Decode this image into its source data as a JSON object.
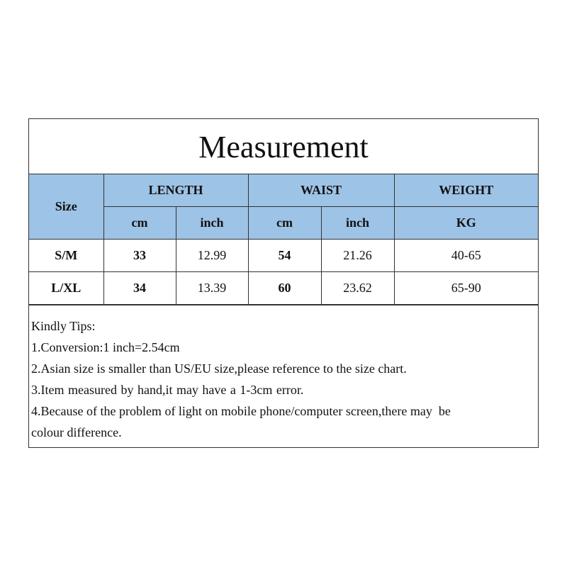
{
  "title": "Measurement",
  "header": {
    "size": "Size",
    "length": "LENGTH",
    "waist": "WAIST",
    "weight": "WEIGHT",
    "cm": "cm",
    "inch": "inch",
    "kg": "KG"
  },
  "rows": [
    {
      "size": "S/M",
      "length_cm": "33",
      "length_inch": "12.99",
      "waist_cm": "54",
      "waist_inch": "21.26",
      "weight": "40-65"
    },
    {
      "size": "L/XL",
      "length_cm": "34",
      "length_inch": "13.39",
      "waist_cm": "60",
      "waist_inch": "23.62",
      "weight": "65-90"
    }
  ],
  "tips": [
    "Kindly Tips:",
    "1.Conversion:1 inch=2.54cm",
    "2.Asian size is smaller than US/EU size,please reference to the size chart.",
    "3.Item measured by hand,it may have a 1-3cm error.",
    "4.Because of the problem of light on mobile phone/computer screen,there may  be",
    "colour difference."
  ],
  "colors": {
    "header_bg": "#9dc3e6",
    "border": "#333333"
  }
}
